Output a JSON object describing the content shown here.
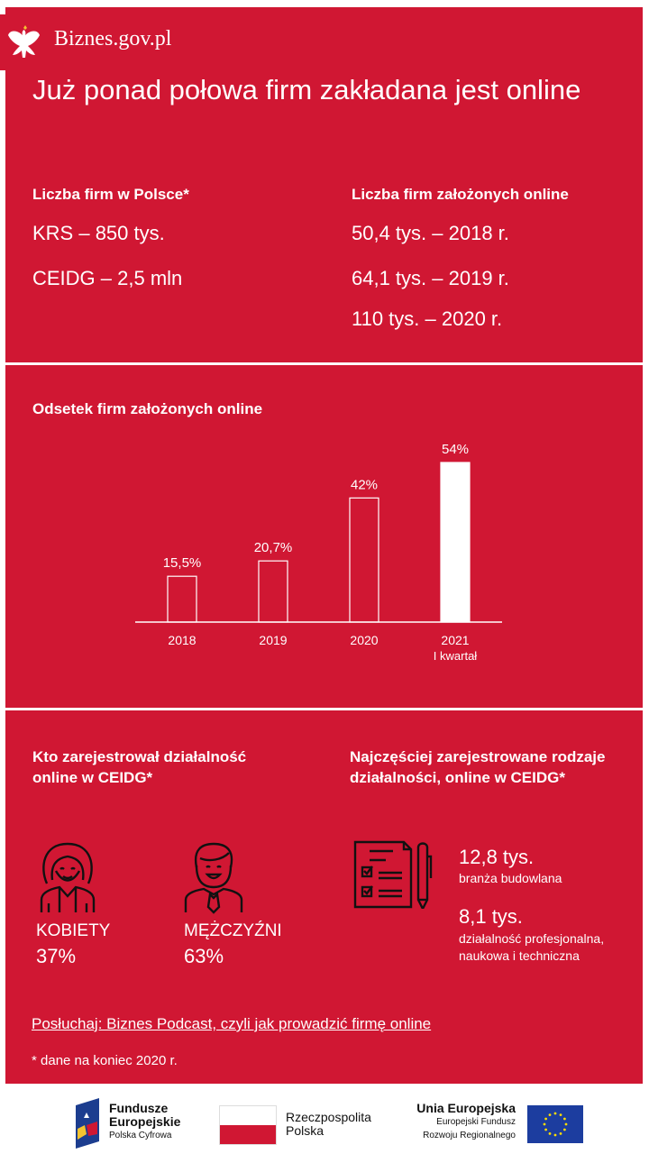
{
  "brand": "Biznes.gov.pl",
  "title": "Już ponad połowa firm zakładana jest online",
  "firms_poland": {
    "heading": "Liczba firm w Polsce*",
    "items": [
      "KRS – 850 tys.",
      "CEIDG – 2,5 mln"
    ]
  },
  "firms_online": {
    "heading": "Liczba firm założonych online",
    "items": [
      "50,4 tys. – 2018 r.",
      "64,1 tys. – 2019 r.",
      "110 tys. – 2020 r."
    ]
  },
  "chart_data": {
    "type": "bar",
    "title": "Odsetek firm założonych online",
    "categories": [
      "2018",
      "2019",
      "2020",
      "2021"
    ],
    "category_sublabels": [
      "",
      "",
      "",
      "I kwartał"
    ],
    "values": [
      15.5,
      20.7,
      42,
      54
    ],
    "value_labels": [
      "15,5%",
      "20,7%",
      "42%",
      "54%"
    ],
    "highlighted": [
      false,
      false,
      false,
      true
    ],
    "xlabel": "",
    "ylabel": "",
    "ylim": [
      0,
      54
    ],
    "grid": false
  },
  "who": {
    "heading_line1": "Kto zarejestrował działalność",
    "heading_line2": "online w CEIDG*",
    "women_label": "KOBIETY",
    "women_value": "37%",
    "men_label": "MĘŻCZYŹNI",
    "men_value": "63%"
  },
  "types": {
    "heading_line1": "Najczęściej zarejestrowane rodzaje",
    "heading_line2": "działalności, online w CEIDG*",
    "items": [
      {
        "value": "12,8 tys.",
        "desc1": "branża budowlana",
        "desc2": ""
      },
      {
        "value": "8,1 tys.",
        "desc1": "działalność profesjonalna,",
        "desc2": "naukowa i techniczna"
      }
    ]
  },
  "podcast_link": "Posłuchaj: Biznes Podcast, czyli jak prowadzić firmę online",
  "footnote": "* dane na koniec 2020 r.",
  "logos": {
    "fe_line1": "Fundusze",
    "fe_line2": "Europejskie",
    "fe_line3": "Polska Cyfrowa",
    "rp_line1": "Rzeczpospolita",
    "rp_line2": "Polska",
    "ue_line1": "Unia Europejska",
    "ue_line2": "Europejski Fundusz",
    "ue_line3": "Rozwoju Regionalnego"
  }
}
